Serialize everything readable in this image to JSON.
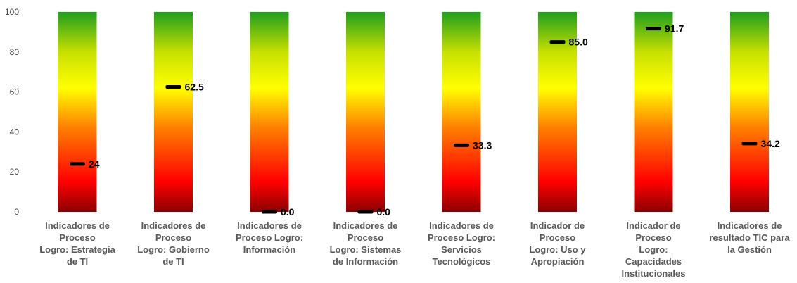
{
  "chart_data": {
    "type": "bar",
    "title": "",
    "xlabel": "",
    "ylabel": "",
    "ylim": [
      0,
      100
    ],
    "yticks": [
      "0",
      "20",
      "40",
      "60",
      "80",
      "100"
    ],
    "grid": false,
    "legend": "none",
    "background_gradient": [
      "#8b0000",
      "#ff0000",
      "#ff7f00",
      "#ffff00",
      "#c8e000",
      "#1e9e1e"
    ],
    "marker_color": "#000000",
    "categories": [
      [
        "Indicadores de",
        "Proceso",
        "Logro: Estrategia",
        "de TI"
      ],
      [
        "Indicadores de",
        "Proceso",
        "Logro: Gobierno",
        "de TI"
      ],
      [
        "Indicadores de",
        "Proceso Logro:",
        "Información"
      ],
      [
        "Indicadores de",
        "Proceso",
        "Logro: Sistemas",
        "de Información"
      ],
      [
        "Indicadores de",
        "Proceso  Logro:",
        "Servicios",
        "Tecnológicos"
      ],
      [
        "Indicador de",
        "Proceso",
        "Logro: Uso y",
        "Apropiación"
      ],
      [
        "Indicador de",
        "Proceso",
        "Logro:",
        "Capacidades",
        "Institucionales"
      ],
      [
        "Indicadores de",
        "resultado TIC para",
        "la Gestión"
      ]
    ],
    "values": [
      24,
      62.5,
      0.0,
      0.0,
      33.3,
      85.0,
      91.7,
      34.2
    ],
    "data_labels": [
      "24",
      "62.5",
      "0.0",
      "0.0",
      "33.3",
      "85.0",
      "91.7",
      "34.2"
    ]
  }
}
